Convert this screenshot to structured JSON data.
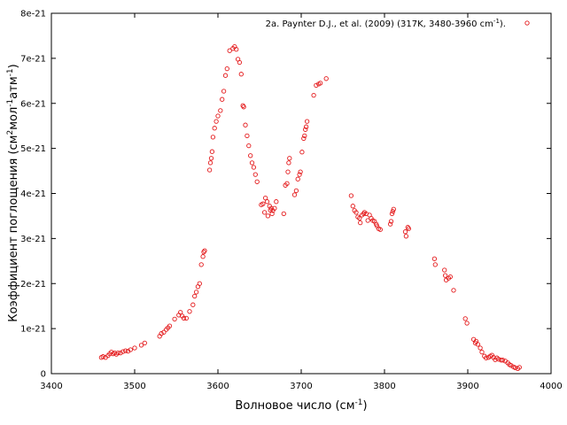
{
  "chart_data": {
    "type": "scatter",
    "xlabel": "Волновое число (см",
    "xlabel_sup": "-1",
    "xlabel_end": ")",
    "ylabel": "Коэффициент поглощения (см",
    "ylabel_sup1": "2",
    "ylabel_mid1": "мол",
    "ylabel_sup2": "-1",
    "ylabel_mid2": "атм",
    "ylabel_sup3": "-1",
    "ylabel_end": ")",
    "xlim": [
      3400,
      4000
    ],
    "ylim": [
      0,
      8e-21
    ],
    "x_ticks": [
      {
        "value": 3400,
        "label": "3400"
      },
      {
        "value": 3500,
        "label": "3500"
      },
      {
        "value": 3600,
        "label": "3600"
      },
      {
        "value": 3700,
        "label": "3700"
      },
      {
        "value": 3800,
        "label": "3800"
      },
      {
        "value": 3900,
        "label": "3900"
      },
      {
        "value": 4000,
        "label": "4000"
      }
    ],
    "y_ticks": [
      {
        "value": 0,
        "label": "0"
      },
      {
        "value": 1e-21,
        "label": "1e-21"
      },
      {
        "value": 2e-21,
        "label": "2e-21"
      },
      {
        "value": 3e-21,
        "label": "3e-21"
      },
      {
        "value": 4e-21,
        "label": "4e-21"
      },
      {
        "value": 5e-21,
        "label": "5e-21"
      },
      {
        "value": 6e-21,
        "label": "6e-21"
      },
      {
        "value": 7e-21,
        "label": "7e-21"
      },
      {
        "value": 8e-21,
        "label": "8e-21"
      }
    ],
    "grid": false,
    "legend_position": "top-right",
    "series": [
      {
        "name": "2a. Paynter D.J., et al. (2009) (317K, 3480-3960 cm",
        "name_sup": "-1",
        "name_end": ").",
        "color": "#e41a1c",
        "marker": "open-circle",
        "points": [
          [
            3460,
            3.6e-22
          ],
          [
            3462,
            3.8e-22
          ],
          [
            3465,
            3.6e-22
          ],
          [
            3468,
            4e-22
          ],
          [
            3470,
            4.4e-22
          ],
          [
            3472,
            4.8e-22
          ],
          [
            3474,
            4.4e-22
          ],
          [
            3476,
            4.6e-22
          ],
          [
            3478,
            4.3e-22
          ],
          [
            3480,
            4.6e-22
          ],
          [
            3483,
            4.6e-22
          ],
          [
            3486,
            4.9e-22
          ],
          [
            3489,
            5.1e-22
          ],
          [
            3492,
            5e-22
          ],
          [
            3495,
            5.3e-22
          ],
          [
            3500,
            5.7e-22
          ],
          [
            3508,
            6.3e-22
          ],
          [
            3512,
            6.8e-22
          ],
          [
            3530,
            8.3e-22
          ],
          [
            3532,
            8.9e-22
          ],
          [
            3535,
            9.2e-22
          ],
          [
            3538,
            9.8e-22
          ],
          [
            3540,
            1.02e-21
          ],
          [
            3542,
            1.06e-21
          ],
          [
            3548,
            1.21e-21
          ],
          [
            3553,
            1.3e-21
          ],
          [
            3555,
            1.36e-21
          ],
          [
            3557,
            1.28e-21
          ],
          [
            3559,
            1.23e-21
          ],
          [
            3562,
            1.23e-21
          ],
          [
            3566,
            1.38e-21
          ],
          [
            3570,
            1.53e-21
          ],
          [
            3572,
            1.72e-21
          ],
          [
            3574,
            1.81e-21
          ],
          [
            3576,
            1.93e-21
          ],
          [
            3578,
            2e-21
          ],
          [
            3580,
            2.42e-21
          ],
          [
            3582,
            2.6e-21
          ],
          [
            3583,
            2.7e-21
          ],
          [
            3584,
            2.73e-21
          ],
          [
            3590,
            4.52e-21
          ],
          [
            3591,
            4.68e-21
          ],
          [
            3592,
            4.78e-21
          ],
          [
            3593,
            4.93e-21
          ],
          [
            3594,
            5.25e-21
          ],
          [
            3596,
            5.45e-21
          ],
          [
            3598,
            5.6e-21
          ],
          [
            3600,
            5.72e-21
          ],
          [
            3603,
            5.84e-21
          ],
          [
            3605,
            6.09e-21
          ],
          [
            3607,
            6.27e-21
          ],
          [
            3609,
            6.62e-21
          ],
          [
            3611,
            6.77e-21
          ],
          [
            3614,
            7.17e-21
          ],
          [
            3618,
            7.22e-21
          ],
          [
            3620,
            7.26e-21
          ],
          [
            3622,
            7.2e-21
          ],
          [
            3624,
            6.98e-21
          ],
          [
            3626,
            6.91e-21
          ],
          [
            3628,
            6.65e-21
          ],
          [
            3630,
            5.95e-21
          ],
          [
            3631,
            5.92e-21
          ],
          [
            3633,
            5.52e-21
          ],
          [
            3635,
            5.28e-21
          ],
          [
            3637,
            5.06e-21
          ],
          [
            3639,
            4.84e-21
          ],
          [
            3641,
            4.68e-21
          ],
          [
            3643,
            4.58e-21
          ],
          [
            3645,
            4.42e-21
          ],
          [
            3647,
            4.26e-21
          ],
          [
            3652,
            3.75e-21
          ],
          [
            3654,
            3.77e-21
          ],
          [
            3656,
            3.58e-21
          ],
          [
            3657,
            3.9e-21
          ],
          [
            3659,
            3.82e-21
          ],
          [
            3660,
            3.5e-21
          ],
          [
            3662,
            3.72e-21
          ],
          [
            3663,
            3.63e-21
          ],
          [
            3664,
            3.67e-21
          ],
          [
            3665,
            3.55e-21
          ],
          [
            3666,
            3.62e-21
          ],
          [
            3668,
            3.67e-21
          ],
          [
            3670,
            3.82e-21
          ],
          [
            3679,
            3.55e-21
          ],
          [
            3681,
            4.18e-21
          ],
          [
            3683,
            4.22e-21
          ],
          [
            3684,
            4.48e-21
          ],
          [
            3685,
            4.68e-21
          ],
          [
            3686,
            4.78e-21
          ],
          [
            3692,
            3.97e-21
          ],
          [
            3694,
            4.06e-21
          ],
          [
            3696,
            4.32e-21
          ],
          [
            3698,
            4.42e-21
          ],
          [
            3699,
            4.48e-21
          ],
          [
            3701,
            4.92e-21
          ],
          [
            3703,
            5.22e-21
          ],
          [
            3704,
            5.28e-21
          ],
          [
            3705,
            5.42e-21
          ],
          [
            3706,
            5.48e-21
          ],
          [
            3707,
            5.6e-21
          ],
          [
            3715,
            6.18e-21
          ],
          [
            3718,
            6.4e-21
          ],
          [
            3721,
            6.43e-21
          ],
          [
            3723,
            6.45e-21
          ],
          [
            3730,
            6.55e-21
          ],
          [
            3760,
            3.95e-21
          ],
          [
            3762,
            3.72e-21
          ],
          [
            3764,
            3.62e-21
          ],
          [
            3766,
            3.58e-21
          ],
          [
            3768,
            3.48e-21
          ],
          [
            3770,
            3.45e-21
          ],
          [
            3771,
            3.35e-21
          ],
          [
            3773,
            3.52e-21
          ],
          [
            3775,
            3.55e-21
          ],
          [
            3776,
            3.58e-21
          ],
          [
            3778,
            3.55e-21
          ],
          [
            3780,
            3.4e-21
          ],
          [
            3782,
            3.52e-21
          ],
          [
            3784,
            3.45e-21
          ],
          [
            3786,
            3.4e-21
          ],
          [
            3788,
            3.38e-21
          ],
          [
            3790,
            3.32e-21
          ],
          [
            3791,
            3.28e-21
          ],
          [
            3793,
            3.22e-21
          ],
          [
            3795,
            3.2e-21
          ],
          [
            3807,
            3.32e-21
          ],
          [
            3808,
            3.38e-21
          ],
          [
            3809,
            3.55e-21
          ],
          [
            3810,
            3.6e-21
          ],
          [
            3811,
            3.65e-21
          ],
          [
            3825,
            3.15e-21
          ],
          [
            3826,
            3.05e-21
          ],
          [
            3828,
            3.25e-21
          ],
          [
            3829,
            3.22e-21
          ],
          [
            3860,
            2.55e-21
          ],
          [
            3861,
            2.42e-21
          ],
          [
            3872,
            2.3e-21
          ],
          [
            3873,
            2.18e-21
          ],
          [
            3874,
            2.08e-21
          ],
          [
            3877,
            2.12e-21
          ],
          [
            3879,
            2.15e-21
          ],
          [
            3883,
            1.85e-21
          ],
          [
            3897,
            1.22e-21
          ],
          [
            3899,
            1.12e-21
          ],
          [
            3907,
            7.6e-22
          ],
          [
            3909,
            6.8e-22
          ],
          [
            3910,
            7.2e-22
          ],
          [
            3912,
            6.5e-22
          ],
          [
            3915,
            5.7e-22
          ],
          [
            3917,
            4.8e-22
          ],
          [
            3920,
            3.9e-22
          ],
          [
            3922,
            3.5e-22
          ],
          [
            3925,
            3.6e-22
          ],
          [
            3927,
            3.9e-22
          ],
          [
            3929,
            4.1e-22
          ],
          [
            3931,
            3.6e-22
          ],
          [
            3933,
            3.1e-22
          ],
          [
            3935,
            3.5e-22
          ],
          [
            3937,
            3.2e-22
          ],
          [
            3940,
            3e-22
          ],
          [
            3942,
            3e-22
          ],
          [
            3945,
            2.8e-22
          ],
          [
            3948,
            2.4e-22
          ],
          [
            3950,
            2e-22
          ],
          [
            3952,
            1.8e-22
          ],
          [
            3955,
            1.5e-22
          ],
          [
            3957,
            1.3e-22
          ],
          [
            3960,
            1.1e-22
          ],
          [
            3962,
            1.4e-22
          ]
        ]
      }
    ]
  }
}
